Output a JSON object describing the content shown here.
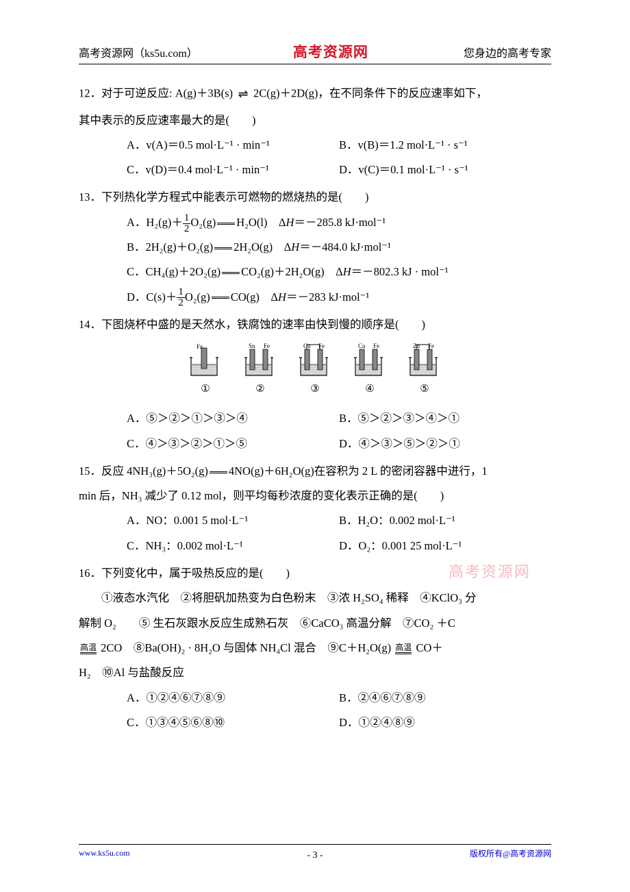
{
  "header": {
    "left": "高考资源网（ks5u.com）",
    "center": "高考资源网",
    "right": "您身边的高考专家"
  },
  "watermark": "高考资源网",
  "footer": {
    "left": "www.ks5u.com",
    "center": "- 3 -",
    "right": "版权所有@高考资源网"
  },
  "q12": {
    "body_p1": "12．对于可逆反应: A(g)＋3B(s)",
    "body_p2": "2C(g)＋2D(g)，在不同条件下的反应速率如下，",
    "body_p3": "其中表示的反应速率最大的是(　　)",
    "optA": "A．v(A)＝0.5 mol·L⁻¹ · min⁻¹",
    "optB": "B．v(B)＝1.2 mol·L⁻¹ · s⁻¹",
    "optC": "C．v(D)＝0.4 mol·L⁻¹ · min⁻¹",
    "optD": "D．v(C)＝0.1 mol·L⁻¹ · s⁻¹"
  },
  "q13": {
    "body": "13．下列热化学方程式中能表示可燃物的燃烧热的是(　　)",
    "optA_p1": "A．H₂(g)＋",
    "optA_p2": "O₂(g)",
    "optA_p3": "H₂O(l)　Δ",
    "optA_p4": "＝－285.8 kJ·mol⁻¹",
    "optB_p1": "B．2H₂(g)＋O₂(g)",
    "optB_p2": "2H₂O(g)　Δ",
    "optB_p3": "＝－484.0 kJ·mol⁻¹",
    "optC_p1": "C．CH₄(g)＋2O₂(g)",
    "optC_p2": "CO₂(g)＋2H₂O(g)　Δ",
    "optC_p3": "＝－802.3 kJ · mol⁻¹",
    "optD_p1": "D．C(s)＋",
    "optD_p2": "O₂(g)",
    "optD_p3": "CO(g)　Δ",
    "optD_p4": "＝－283 kJ·mol⁻¹",
    "frac_top": "1",
    "frac_bot": "2"
  },
  "q14": {
    "body": "14．下图烧杯中盛的是天然水，铁腐蚀的速率由快到慢的顺序是(　　)",
    "diagrams": [
      {
        "left": "Fe",
        "right": "",
        "single": true,
        "num": "①"
      },
      {
        "left": "Sn",
        "right": "Fe",
        "single": false,
        "num": "②"
      },
      {
        "left": "Cu",
        "right": "Fe",
        "single": false,
        "wire": true,
        "num": "③"
      },
      {
        "left": "Cu",
        "right": "Fe",
        "single": false,
        "num": "④"
      },
      {
        "left": "Zn",
        "right": "Fe",
        "single": false,
        "wire": true,
        "num": "⑤"
      }
    ],
    "optA": "A．⑤＞②＞①＞③＞④",
    "optB": "B．⑤＞②＞③＞④＞①",
    "optC": "C．④＞③＞②＞①＞⑤",
    "optD": "D．④＞③＞⑤＞②＞①"
  },
  "q15": {
    "body_p1": "15．反应 4NH₃(g)＋5O₂(g)",
    "body_p2": "4NO(g)＋6H₂O(g)在容积为 2 L 的密闭容器中进行，1",
    "body_p3": "min 后，NH₃ 减少了 0.12 mol，则平均每秒浓度的变化表示正确的是(　　)",
    "optA": "A．NO：0.001 5 mol·L⁻¹",
    "optB": "B．H₂O：0.002 mol·L⁻¹",
    "optC": "C．NH₃：0.002 mol·L⁻¹",
    "optD": "D．O₂：0.001 25 mol·L⁻¹"
  },
  "q16": {
    "body": "16．下列变化中，属于吸热反应的是(　　)",
    "items_p1": "　　①液态水汽化　②将胆矾加热变为白色粉末　③浓 H₂SO₄ 稀释　④KClO₃ 分",
    "items_p2": "解制 O₂　　⑤ 生石灰跟水反应生成熟石灰　⑥CaCO₃ 高温分解　⑦CO₂ ＋C",
    "items_p3a": " 2CO　⑧Ba(OH)₂ · 8H₂O 与固体 NH₄Cl 混合　⑨C＋H₂O(g) ",
    "items_p3b": " CO＋",
    "items_p4": "H₂　⑩Al 与盐酸反应",
    "cond": "高温",
    "optA": "A．①②④⑥⑦⑧⑨",
    "optB": "B．②④⑥⑦⑧⑨",
    "optC": "C．①③④⑤⑥⑧⑩",
    "optD": "D．①②④⑧⑨"
  },
  "colors": {
    "text": "#000000",
    "red": "#d4152a",
    "blue": "#0000cc",
    "watermark": "#f0a0a8",
    "background": "#ffffff"
  }
}
